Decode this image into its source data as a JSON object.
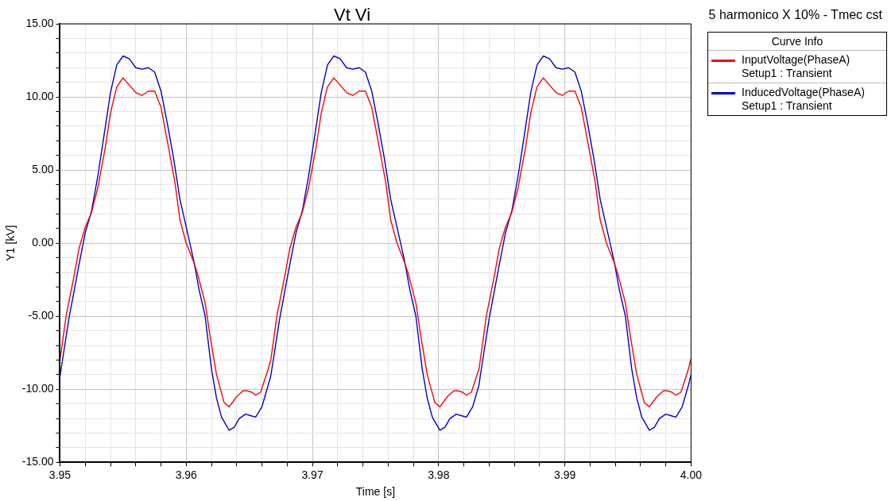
{
  "chart_data": {
    "type": "line",
    "title": "Vt Vi",
    "subtitle": "5 harmonico X 10% - Tmec cst",
    "xlabel": "Time [s]",
    "ylabel": "Y1 [kV]",
    "legend_title": "Curve Info",
    "legend": "right",
    "grid": true,
    "marker": "none",
    "line_style": "solid",
    "xlim": [
      3.95,
      4.0
    ],
    "xticks": [
      3.95,
      {
        "value": 3.952,
        "label": null
      },
      {
        "value": 3.954,
        "label": null
      },
      {
        "value": 3.956,
        "label": null
      },
      {
        "value": 3.958,
        "label": null
      },
      3.96,
      {
        "value": 3.962,
        "label": null
      },
      {
        "value": 3.964,
        "label": null
      },
      {
        "value": 3.966,
        "label": null
      },
      {
        "value": 3.968,
        "label": null
      },
      3.97,
      {
        "value": 3.972,
        "label": null
      },
      {
        "value": 3.974,
        "label": null
      },
      {
        "value": 3.976,
        "label": null
      },
      {
        "value": 3.978,
        "label": null
      },
      3.98,
      {
        "value": 3.982,
        "label": null
      },
      {
        "value": 3.984,
        "label": null
      },
      {
        "value": 3.986,
        "label": null
      },
      {
        "value": 3.988,
        "label": null
      },
      3.99,
      {
        "value": 3.992,
        "label": null
      },
      {
        "value": 3.994,
        "label": null
      },
      {
        "value": 3.996,
        "label": null
      },
      {
        "value": 3.998,
        "label": null
      },
      {
        "value": 4.0,
        "label": "4.00"
      }
    ],
    "ylim": [
      -15,
      15
    ],
    "yticks": [
      {
        "value": -15,
        "label": "-15.00"
      },
      {
        "value": -14,
        "label": null
      },
      {
        "value": -13,
        "label": null
      },
      {
        "value": -12,
        "label": null
      },
      {
        "value": -11,
        "label": null
      },
      {
        "value": -10,
        "label": "-10.00"
      },
      {
        "value": -9,
        "label": null
      },
      {
        "value": -8,
        "label": null
      },
      {
        "value": -7,
        "label": null
      },
      {
        "value": -6,
        "label": null
      },
      {
        "value": -5,
        "label": "-5.00"
      },
      {
        "value": -4,
        "label": null
      },
      {
        "value": -3,
        "label": null
      },
      {
        "value": -2,
        "label": null
      },
      {
        "value": -1,
        "label": null
      },
      {
        "value": 0,
        "label": "0.00"
      },
      {
        "value": 1,
        "label": null
      },
      {
        "value": 2,
        "label": null
      },
      {
        "value": 3,
        "label": null
      },
      {
        "value": 4,
        "label": null
      },
      {
        "value": 5,
        "label": "5.00"
      },
      {
        "value": 6,
        "label": null
      },
      {
        "value": 7,
        "label": null
      },
      {
        "value": 8,
        "label": null
      },
      {
        "value": 9,
        "label": null
      },
      {
        "value": 10,
        "label": "10.00"
      },
      {
        "value": 11,
        "label": null
      },
      {
        "value": 12,
        "label": null
      },
      {
        "value": 13,
        "label": null
      },
      {
        "value": 14,
        "label": null
      },
      {
        "value": 15,
        "label": "15.00"
      }
    ],
    "series": [
      {
        "name": "InputVoltage(PhaseA)\nSetup1 : Transient",
        "color": "#ff0000",
        "x": [
          3.95,
          3.9505,
          3.9511,
          3.9515,
          3.952,
          3.9525,
          3.953,
          3.9536,
          3.954,
          3.9545,
          3.955,
          3.9555,
          3.956,
          3.9565,
          3.957,
          3.9575,
          3.958,
          3.9585,
          3.9591,
          3.9595,
          3.96,
          3.9606,
          3.9609,
          3.9615,
          3.9619,
          3.9624,
          3.963,
          3.9634,
          3.964,
          3.9645,
          3.9648,
          3.9652,
          3.9655,
          3.9659,
          3.9665,
          3.9667,
          3.9672,
          3.9678,
          3.9682,
          3.9687,
          3.9692,
          3.9697,
          3.9703,
          3.9707,
          3.9712,
          3.9717,
          3.9722,
          3.9727,
          3.9732,
          3.9737,
          3.9742,
          3.9747,
          3.9752,
          3.9758,
          3.9762,
          3.9767,
          3.9773,
          3.9776,
          3.9782,
          3.9786,
          3.9791,
          3.9797,
          3.9801,
          3.9807,
          3.9812,
          3.9815,
          3.9819,
          3.9822,
          3.9826,
          3.9832,
          3.9833,
          3.9838,
          3.9844,
          3.9848,
          3.9853,
          3.9858,
          3.9863,
          3.9869,
          3.9873,
          3.9878,
          3.9883,
          3.9888,
          3.9893,
          3.9898,
          3.9903,
          3.9908,
          3.9913,
          3.9918,
          3.9924,
          3.9928,
          3.9933,
          3.9939,
          3.9942,
          3.9948,
          3.9952,
          3.9957,
          3.9963,
          3.9967,
          3.9973,
          3.9978,
          3.9981,
          3.9985,
          3.9988,
          3.9992,
          3.9998,
          4.0
        ],
        "values": [
          -8.0,
          -4.9,
          -2.3,
          -0.4,
          1.1,
          2.1,
          3.8,
          6.6,
          8.9,
          10.7,
          11.3,
          10.8,
          10.3,
          10.1,
          10.4,
          10.4,
          9.3,
          7.0,
          4.2,
          1.6,
          0.0,
          -1.3,
          -2.1,
          -4.1,
          -6.4,
          -9.0,
          -10.9,
          -11.2,
          -10.5,
          -10.1,
          -10.1,
          -10.2,
          -10.4,
          -10.2,
          -8.6,
          -8.0,
          -4.9,
          -2.3,
          -0.4,
          1.1,
          2.1,
          3.8,
          6.6,
          8.9,
          10.7,
          11.3,
          10.8,
          10.3,
          10.1,
          10.4,
          10.4,
          9.3,
          7.0,
          4.2,
          1.6,
          0.0,
          -1.3,
          -2.1,
          -4.1,
          -6.4,
          -9.0,
          -10.9,
          -11.2,
          -10.5,
          -10.1,
          -10.1,
          -10.2,
          -10.4,
          -10.2,
          -8.6,
          -8.0,
          -4.9,
          -2.3,
          -0.4,
          1.1,
          2.1,
          3.8,
          6.6,
          8.9,
          10.7,
          11.3,
          10.8,
          10.3,
          10.1,
          10.4,
          10.4,
          9.3,
          7.0,
          4.2,
          1.6,
          0.0,
          -1.3,
          -2.1,
          -4.1,
          -6.4,
          -9.0,
          -10.9,
          -11.2,
          -10.5,
          -10.1,
          -10.1,
          -10.2,
          -10.4,
          -10.2,
          -8.6,
          -7.9
        ]
      },
      {
        "name": "InducedVoltage(PhaseA)\nSetup1 : Transient",
        "color": "#0000cc",
        "x": [
          3.95,
          3.9507,
          3.9515,
          3.952,
          3.9525,
          3.953,
          3.9536,
          3.954,
          3.9545,
          3.955,
          3.9555,
          3.956,
          3.9565,
          3.957,
          3.9575,
          3.958,
          3.9585,
          3.959,
          3.9595,
          3.96,
          3.9606,
          3.961,
          3.9615,
          3.962,
          3.9624,
          3.9628,
          3.9634,
          3.9638,
          3.9642,
          3.9647,
          3.9651,
          3.9655,
          3.966,
          3.9665,
          3.9667,
          3.9674,
          3.9682,
          3.9687,
          3.9692,
          3.9697,
          3.9703,
          3.9707,
          3.9712,
          3.9717,
          3.9722,
          3.9727,
          3.9732,
          3.9737,
          3.9742,
          3.9747,
          3.9752,
          3.9757,
          3.9762,
          3.9767,
          3.9773,
          3.9777,
          3.9782,
          3.9787,
          3.9791,
          3.9795,
          3.9801,
          3.9805,
          3.9809,
          3.9814,
          3.9818,
          3.9822,
          3.9827,
          3.9832,
          3.9833,
          3.984,
          3.9848,
          3.9853,
          3.9858,
          3.9863,
          3.9869,
          3.9873,
          3.9878,
          3.9883,
          3.9888,
          3.9893,
          3.9898,
          3.9903,
          3.9908,
          3.9913,
          3.9918,
          3.9923,
          3.9928,
          3.9933,
          3.9939,
          3.9943,
          3.9948,
          3.9953,
          3.9957,
          3.9961,
          3.9967,
          3.9971,
          3.9975,
          3.998,
          3.9984,
          3.9988,
          3.9993,
          3.9998,
          4.0
        ],
        "values": [
          -9.1,
          -5.2,
          -1.5,
          0.7,
          2.2,
          4.6,
          8.0,
          10.3,
          12.2,
          12.8,
          12.6,
          12.0,
          11.9,
          12.0,
          11.7,
          10.4,
          8.2,
          5.8,
          3.0,
          1.1,
          -1.2,
          -3.1,
          -5.0,
          -8.6,
          -10.6,
          -11.9,
          -12.8,
          -12.6,
          -12.0,
          -11.7,
          -11.8,
          -11.9,
          -11.2,
          -9.7,
          -9.1,
          -5.2,
          -1.5,
          0.7,
          2.2,
          4.6,
          8.0,
          10.3,
          12.2,
          12.8,
          12.6,
          12.0,
          11.9,
          12.0,
          11.7,
          10.4,
          8.2,
          5.8,
          3.0,
          1.1,
          -1.2,
          -3.1,
          -5.0,
          -8.6,
          -10.6,
          -11.9,
          -12.8,
          -12.6,
          -12.0,
          -11.7,
          -11.8,
          -11.9,
          -11.2,
          -9.7,
          -9.1,
          -5.2,
          -1.5,
          0.7,
          2.2,
          4.6,
          8.0,
          10.3,
          12.2,
          12.8,
          12.6,
          12.0,
          11.9,
          12.0,
          11.7,
          10.4,
          8.2,
          5.8,
          3.0,
          1.1,
          -1.2,
          -3.1,
          -5.0,
          -8.6,
          -10.6,
          -11.9,
          -12.8,
          -12.6,
          -12.0,
          -11.7,
          -11.8,
          -11.9,
          -11.2,
          -9.7,
          -9.0
        ]
      }
    ]
  }
}
